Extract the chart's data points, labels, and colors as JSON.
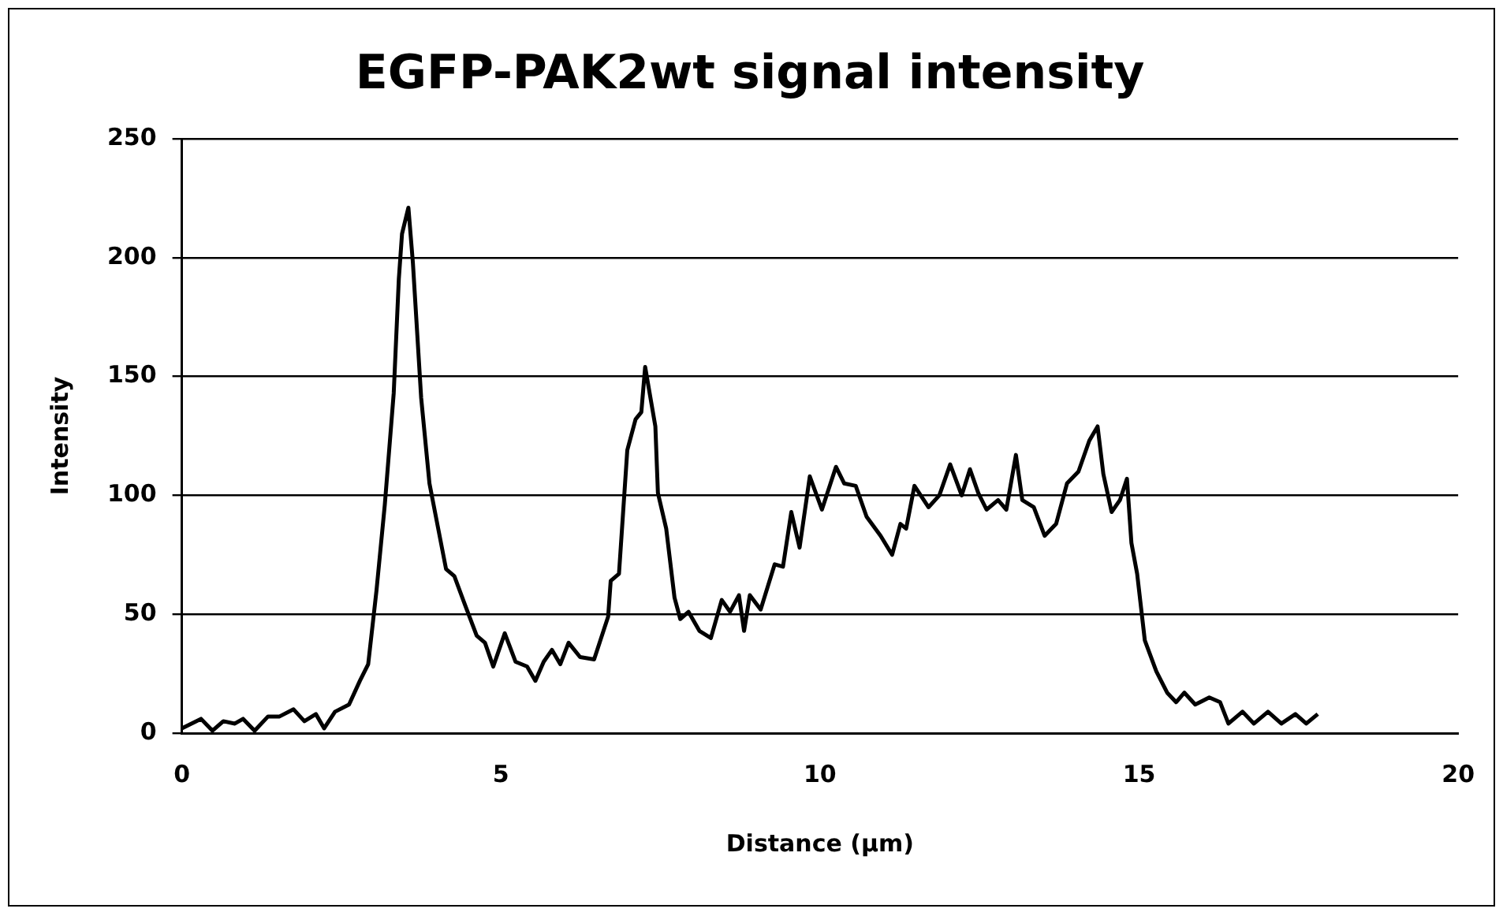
{
  "chart_data": {
    "type": "line",
    "title": "EGFP-PAK2wt signal intensity",
    "xlabel": "Distance (µm)",
    "ylabel": "Intensity",
    "xlim": [
      0,
      20
    ],
    "xticks": [
      0,
      5,
      10,
      15,
      20
    ],
    "ylim": [
      0,
      250
    ],
    "yticks": [
      0,
      50,
      100,
      150,
      200,
      250
    ],
    "grid": "y",
    "marker": "none",
    "line_style": "solid",
    "series": [
      {
        "color": "#000000",
        "x": [
          0.0,
          0.3,
          0.48,
          0.65,
          0.83,
          0.96,
          1.14,
          1.35,
          1.53,
          1.75,
          1.92,
          2.1,
          2.23,
          2.4,
          2.62,
          2.79,
          2.92,
          3.05,
          3.18,
          3.32,
          3.4,
          3.45,
          3.55,
          3.62,
          3.75,
          3.88,
          4.01,
          4.14,
          4.27,
          4.45,
          4.62,
          4.75,
          4.88,
          5.06,
          5.23,
          5.41,
          5.54,
          5.67,
          5.8,
          5.93,
          6.06,
          6.24,
          6.46,
          6.68,
          6.72,
          6.85,
          6.98,
          7.11,
          7.2,
          7.26,
          7.42,
          7.46,
          7.59,
          7.72,
          7.81,
          7.94,
          8.11,
          8.29,
          8.46,
          8.59,
          8.73,
          8.81,
          8.9,
          9.07,
          9.29,
          9.42,
          9.55,
          9.68,
          9.84,
          10.03,
          10.25,
          10.38,
          10.56,
          10.73,
          10.95,
          11.13,
          11.26,
          11.35,
          11.48,
          11.7,
          11.87,
          12.04,
          12.22,
          12.35,
          12.48,
          12.61,
          12.79,
          12.92,
          13.07,
          13.17,
          13.35,
          13.52,
          13.7,
          13.87,
          14.05,
          14.22,
          14.35,
          14.44,
          14.57,
          14.7,
          14.81,
          14.88,
          14.97,
          15.09,
          15.27,
          15.44,
          15.58,
          15.71,
          15.88,
          16.1,
          16.27,
          16.4,
          16.62,
          16.8,
          17.02,
          17.23,
          17.45,
          17.62,
          17.8
        ],
        "values": [
          2,
          6,
          1,
          5,
          4,
          6,
          1,
          7,
          7,
          10,
          5,
          8,
          2,
          9,
          12,
          22,
          29,
          60,
          96,
          143,
          191,
          210,
          221,
          198,
          141,
          105,
          87,
          69,
          66,
          53,
          41,
          38,
          28,
          42,
          30,
          28,
          22,
          30,
          35,
          29,
          38,
          32,
          31,
          49,
          64,
          67,
          119,
          132,
          135,
          154,
          129,
          101,
          86,
          57,
          48,
          51,
          43,
          40,
          56,
          51,
          58,
          43,
          58,
          52,
          71,
          70,
          93,
          78,
          108,
          94,
          112,
          105,
          104,
          91,
          83,
          75,
          88,
          86,
          104,
          95,
          100,
          113,
          100,
          111,
          101,
          94,
          98,
          94,
          117,
          98,
          95,
          83,
          88,
          105,
          110,
          123,
          129,
          109,
          93,
          98,
          107,
          80,
          67,
          39,
          26,
          17,
          13,
          17,
          12,
          15,
          13,
          4,
          9,
          4,
          9,
          4,
          8,
          4,
          8
        ]
      }
    ]
  }
}
